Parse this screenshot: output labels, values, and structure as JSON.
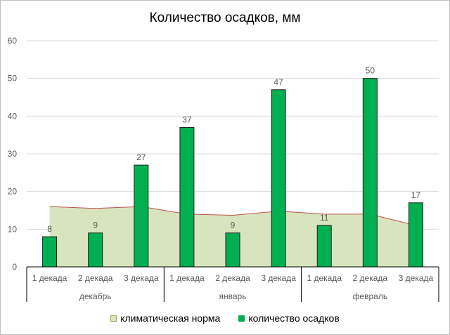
{
  "chart_data": {
    "type": "bar",
    "title": "Количество осадков, мм",
    "xlabel": "",
    "ylabel": "",
    "ylim": [
      0,
      60
    ],
    "yticks": [
      0,
      10,
      20,
      30,
      40,
      50,
      60
    ],
    "grid": true,
    "legend_position": "bottom",
    "groups": [
      {
        "label": "декабрь",
        "categories": [
          "1 декада",
          "2 декада",
          "3 декада"
        ]
      },
      {
        "label": "январь",
        "categories": [
          "1 декада",
          "2 декада",
          "3 декада"
        ]
      },
      {
        "label": "февраль",
        "categories": [
          "1 декада",
          "2 декада",
          "3 декада"
        ]
      }
    ],
    "series": [
      {
        "name": "климатическая норма",
        "type": "area",
        "color": "#d7e4bd",
        "line_color": "#c0504d",
        "values": [
          16,
          15.5,
          16,
          14,
          13.7,
          14.8,
          14,
          14,
          11
        ]
      },
      {
        "name": "количество осадков",
        "type": "bar",
        "color": "#00b050",
        "values": [
          8,
          9,
          27,
          37,
          9,
          47,
          11,
          50,
          17
        ],
        "data_labels": [
          "8",
          "9",
          "27",
          "37",
          "9",
          "47",
          "11",
          "50",
          "17"
        ]
      }
    ]
  }
}
